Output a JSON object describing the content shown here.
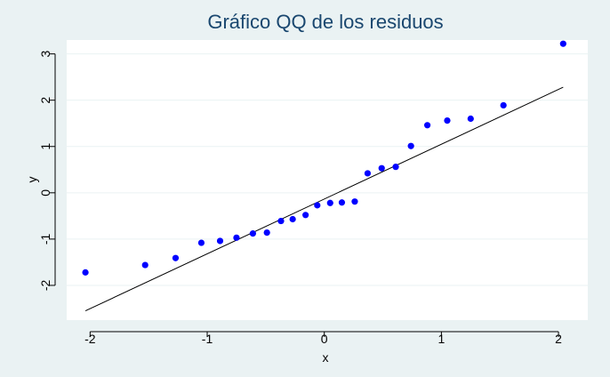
{
  "chart_data": {
    "type": "scatter",
    "title": "Gráfico QQ de los residuos",
    "xlabel": "x",
    "ylabel": "y",
    "xlim": [
      -2.2,
      2.25
    ],
    "ylim": [
      -2.75,
      3.3
    ],
    "xticks": [
      -2,
      -1,
      0,
      1,
      2
    ],
    "yticks": [
      -2,
      -1,
      0,
      1,
      2,
      3
    ],
    "grid": true,
    "colors": {
      "points": "#0000ff",
      "line": "#000000",
      "title": "#1a476f",
      "background": "#eaf2f3",
      "plot_area": "#ffffff"
    },
    "points": [
      {
        "x": -2.04,
        "y": -1.72
      },
      {
        "x": -1.53,
        "y": -1.56
      },
      {
        "x": -1.27,
        "y": -1.41
      },
      {
        "x": -1.05,
        "y": -1.08
      },
      {
        "x": -0.89,
        "y": -1.04
      },
      {
        "x": -0.75,
        "y": -0.97
      },
      {
        "x": -0.61,
        "y": -0.88
      },
      {
        "x": -0.49,
        "y": -0.86
      },
      {
        "x": -0.37,
        "y": -0.61
      },
      {
        "x": -0.27,
        "y": -0.57
      },
      {
        "x": -0.16,
        "y": -0.48
      },
      {
        "x": -0.06,
        "y": -0.27
      },
      {
        "x": 0.05,
        "y": -0.22
      },
      {
        "x": 0.15,
        "y": -0.21
      },
      {
        "x": 0.26,
        "y": -0.19
      },
      {
        "x": 0.37,
        "y": 0.42
      },
      {
        "x": 0.49,
        "y": 0.53
      },
      {
        "x": 0.61,
        "y": 0.56
      },
      {
        "x": 0.74,
        "y": 1.01
      },
      {
        "x": 0.88,
        "y": 1.46
      },
      {
        "x": 1.05,
        "y": 1.56
      },
      {
        "x": 1.25,
        "y": 1.6
      },
      {
        "x": 1.53,
        "y": 1.89
      },
      {
        "x": 2.04,
        "y": 3.22
      }
    ],
    "reference_line": {
      "x1": -2.04,
      "y1": -2.55,
      "x2": 2.04,
      "y2": 2.28
    }
  }
}
